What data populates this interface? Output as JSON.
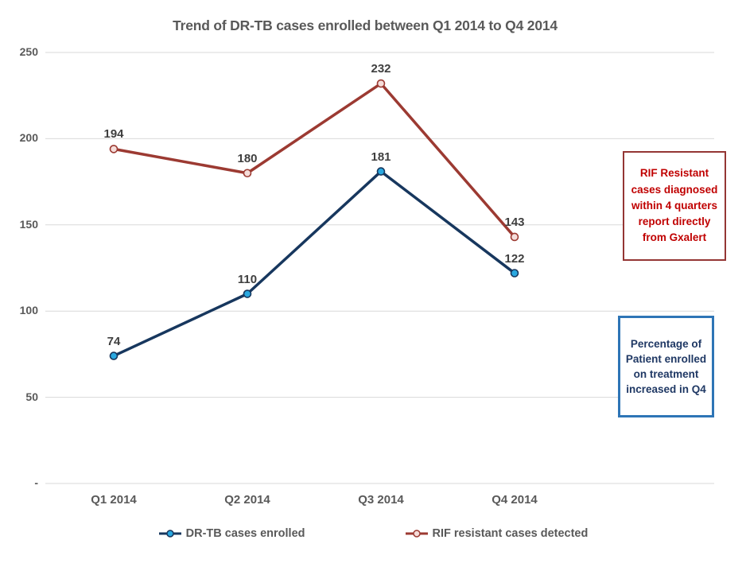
{
  "chart_data": {
    "type": "line",
    "title": "Trend of DR-TB cases enrolled between Q1 2014 to Q4 2014",
    "categories": [
      "Q1 2014",
      "Q2 2014",
      "Q3 2014",
      "Q4 2014"
    ],
    "series": [
      {
        "name": "DR-TB cases enrolled",
        "values": [
          74,
          110,
          181,
          122
        ],
        "line_color": "#17375e",
        "marker_fill": "#29a8e0",
        "marker_stroke": "#17375e"
      },
      {
        "name": "RIF resistant cases detected",
        "values": [
          194,
          180,
          232,
          143
        ],
        "line_color": "#9c3a32",
        "marker_fill": "#f5ddda",
        "marker_stroke": "#9c3a32"
      }
    ],
    "xlabel": "",
    "ylabel": "",
    "ylim": [
      0,
      250
    ],
    "ytick_step": 50,
    "ytick_labels": [
      "-",
      "50",
      "100",
      "150",
      "200",
      "250"
    ],
    "grid": true,
    "legend_position": "bottom",
    "data_labels_shown": true
  },
  "annotations": {
    "rif_note": {
      "text": "RIF Resistant cases diagnosed within 4 quarters report directly from Gxalert",
      "text_color": "#c00000",
      "border_color": "#943634"
    },
    "pct_note": {
      "text": "Percentage of Patient enrolled on treatment increased  in Q4",
      "text_color": "#1f3864",
      "border_color": "#2e75b6"
    }
  },
  "colors": {
    "axis_text": "#595959",
    "data_label": "#3f3f3f",
    "gridline": "#d9d9d9",
    "background": "#ffffff"
  }
}
